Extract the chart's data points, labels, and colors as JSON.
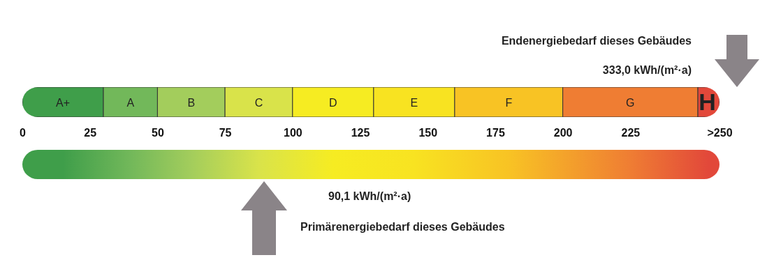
{
  "chart_data": {
    "type": "bar",
    "orientation": "horizontal",
    "stacked": true,
    "legend": false,
    "categories": [
      null
    ],
    "series": [
      {
        "name": "A+",
        "color": "#3f9e4a",
        "values": [
          30
        ]
      },
      {
        "name": "A",
        "color": "#72b85a",
        "values": [
          20
        ]
      },
      {
        "name": "B",
        "color": "#a3cd5c",
        "values": [
          25
        ]
      },
      {
        "name": "C",
        "color": "#d9e34a",
        "values": [
          25
        ]
      },
      {
        "name": "D",
        "color": "#f6ec22",
        "values": [
          30
        ]
      },
      {
        "name": "E",
        "color": "#f8e321",
        "values": [
          30
        ]
      },
      {
        "name": "F",
        "color": "#f8c324",
        "values": [
          40
        ]
      },
      {
        "name": "G",
        "color": "#ef7d33",
        "values": [
          50
        ]
      },
      {
        "name": "H",
        "color": "#e2483a",
        "values": [
          8
        ]
      }
    ],
    "xlim": [
      0,
      258
    ],
    "xticks": [
      0,
      25,
      50,
      75,
      100,
      125,
      150,
      175,
      200,
      225,
      {
        "value": 258,
        "label": ">250"
      }
    ],
    "annotations": [
      "Endenergiebedarf dieses Gebäudes",
      "333,0 kWh/(m²·a)",
      "90,1 kWh/(m²·a)",
      "Primärenergiebedarf dieses Gebäudes"
    ]
  }
}
